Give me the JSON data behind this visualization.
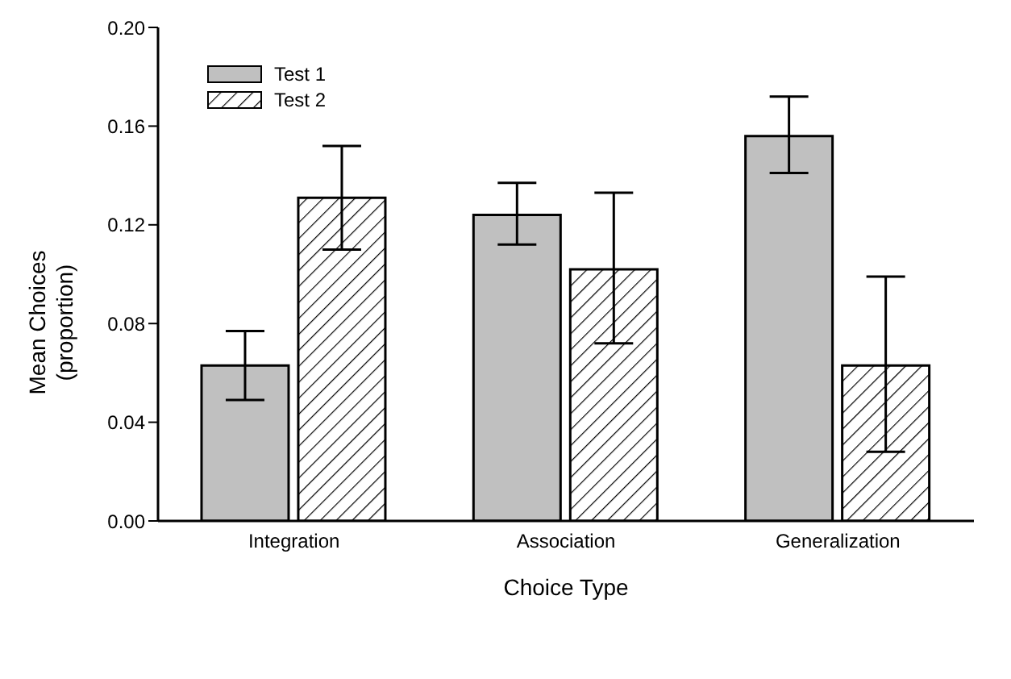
{
  "chart_data": {
    "type": "bar",
    "xlabel": "Choice Type",
    "ylabel": "Mean Choices\n(proportion)",
    "categories": [
      "Integration",
      "Association",
      "Generalization"
    ],
    "series": [
      {
        "name": "Test 1",
        "color": "#c0c0c0",
        "values": [
          0.063,
          0.124,
          0.156
        ],
        "errors": [
          [
            0.049,
            0.077
          ],
          [
            0.112,
            0.137
          ],
          [
            0.141,
            0.172
          ]
        ]
      },
      {
        "name": "Test 2",
        "color": "#000000",
        "values": [
          0.131,
          0.102,
          0.063
        ],
        "errors": [
          [
            0.11,
            0.152
          ],
          [
            0.072,
            0.133
          ],
          [
            0.028,
            0.099
          ]
        ]
      }
    ],
    "ylim": [
      0,
      0.2
    ],
    "yticks": [
      {
        "value": 0,
        "label": "0.00"
      },
      {
        "value": 0.04,
        "label": "0.04"
      },
      {
        "value": 0.08,
        "label": "0.08"
      },
      {
        "value": 0.12,
        "label": "0.12"
      },
      {
        "value": 0.16,
        "label": "0.16"
      },
      {
        "value": 0.2,
        "label": "0.20"
      }
    ],
    "grid": false,
    "legend": "top left"
  }
}
